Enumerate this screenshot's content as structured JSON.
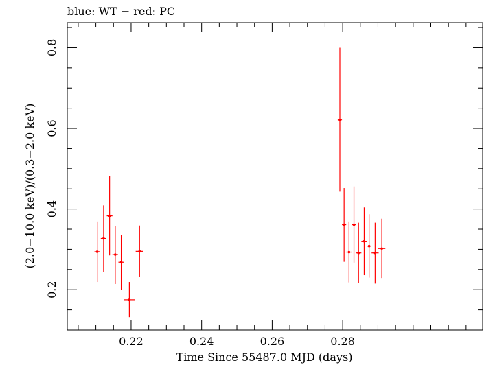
{
  "chart_data": {
    "type": "scatter",
    "title": "blue: WT − red: PC",
    "xlabel": "Time Since 55487.0 MJD (days)",
    "ylabel": "(2.0−10.0 keV)/(0.3−2.0 keV)",
    "xlim": [
      0.2019,
      0.3197
    ],
    "ylim": [
      0.1,
      0.862
    ],
    "x_ticks": [
      0.22,
      0.24,
      0.26,
      0.28
    ],
    "x_tick_labels": [
      "0.22",
      "0.24",
      "0.26",
      "0.28"
    ],
    "y_ticks": [
      0.2,
      0.4,
      0.6,
      0.8
    ],
    "y_tick_labels": [
      "0.2",
      "0.4",
      "0.6",
      "0.8"
    ],
    "grid": false,
    "series": [
      {
        "color": "#ff0000",
        "points": [
          {
            "x": 0.2104,
            "y": 0.294,
            "xerr": 0.0008,
            "ylow": 0.219,
            "yhigh": 0.369
          },
          {
            "x": 0.2122,
            "y": 0.327,
            "xerr": 0.0008,
            "ylow": 0.244,
            "yhigh": 0.409
          },
          {
            "x": 0.2139,
            "y": 0.383,
            "xerr": 0.0008,
            "ylow": 0.285,
            "yhigh": 0.481
          },
          {
            "x": 0.2155,
            "y": 0.287,
            "xerr": 0.0008,
            "ylow": 0.214,
            "yhigh": 0.358
          },
          {
            "x": 0.2172,
            "y": 0.268,
            "xerr": 0.0008,
            "ylow": 0.2,
            "yhigh": 0.336
          },
          {
            "x": 0.2195,
            "y": 0.175,
            "xerr": 0.0015,
            "ylow": 0.132,
            "yhigh": 0.219
          },
          {
            "x": 0.2224,
            "y": 0.295,
            "xerr": 0.0011,
            "ylow": 0.231,
            "yhigh": 0.359
          },
          {
            "x": 0.2792,
            "y": 0.621,
            "xerr": 0.0006,
            "ylow": 0.443,
            "yhigh": 0.8
          },
          {
            "x": 0.2804,
            "y": 0.361,
            "xerr": 0.0006,
            "ylow": 0.269,
            "yhigh": 0.452
          },
          {
            "x": 0.2818,
            "y": 0.293,
            "xerr": 0.0008,
            "ylow": 0.218,
            "yhigh": 0.369
          },
          {
            "x": 0.2832,
            "y": 0.361,
            "xerr": 0.0006,
            "ylow": 0.267,
            "yhigh": 0.456
          },
          {
            "x": 0.2845,
            "y": 0.291,
            "xerr": 0.0008,
            "ylow": 0.216,
            "yhigh": 0.366
          },
          {
            "x": 0.2861,
            "y": 0.32,
            "xerr": 0.0008,
            "ylow": 0.236,
            "yhigh": 0.404
          },
          {
            "x": 0.2875,
            "y": 0.308,
            "xerr": 0.0006,
            "ylow": 0.23,
            "yhigh": 0.387
          },
          {
            "x": 0.2892,
            "y": 0.291,
            "xerr": 0.001,
            "ylow": 0.215,
            "yhigh": 0.366
          },
          {
            "x": 0.2911,
            "y": 0.302,
            "xerr": 0.001,
            "ylow": 0.229,
            "yhigh": 0.376
          }
        ]
      }
    ]
  }
}
